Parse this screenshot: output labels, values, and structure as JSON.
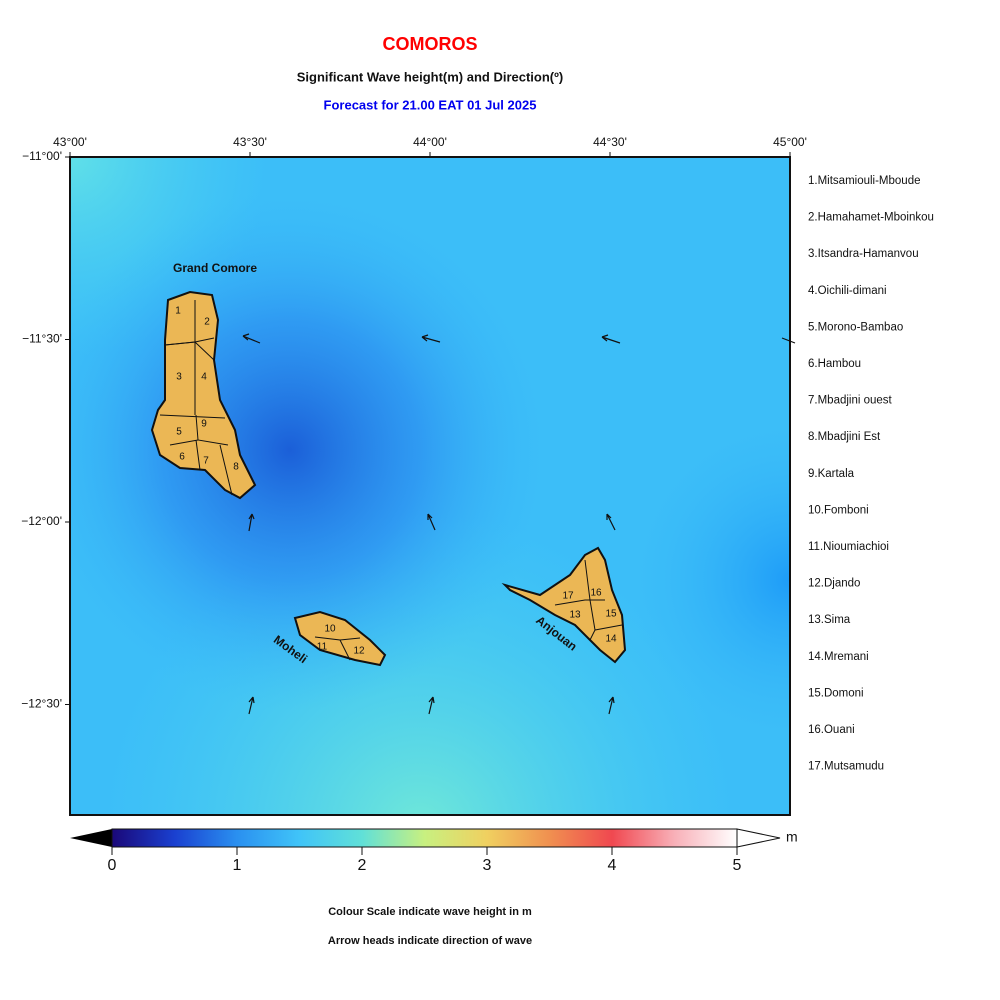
{
  "header": {
    "title": "COMOROS",
    "subtitle": "Significant Wave height(m) and Direction(º)",
    "forecast": "Forecast for  21.00 EAT 01 Jul 2025"
  },
  "map": {
    "lon_labels": [
      "43°00'",
      "43°30'",
      "44°00'",
      "44°30'",
      "45°00'"
    ],
    "lat_labels": [
      "−11°00'",
      "−11°30'",
      "−12°00'",
      "−12°30'"
    ],
    "island_labels": [
      "Grand Comore",
      "Moheli",
      "Anjouan"
    ],
    "region_numbers": [
      "1",
      "2",
      "3",
      "4",
      "5",
      "6",
      "7",
      "8",
      "9",
      "10",
      "11",
      "12",
      "13",
      "14",
      "15",
      "16",
      "17"
    ]
  },
  "legend": {
    "regions": [
      "1.Mitsamiouli-Mboude",
      "2.Hamahamet-Mboinkou",
      "3.Itsandra-Hamanvou",
      "4.Oichili-dimani",
      "5.Morono-Bambao",
      "6.Hambou",
      "7.Mbadjini ouest",
      "8.Mbadjini Est",
      "9.Kartala",
      "10.Fomboni",
      "11.Nioumiachioi",
      "12.Djando",
      "13.Sima",
      "14.Mremani",
      "15.Domoni",
      "16.Ouani",
      "17.Mutsamudu"
    ]
  },
  "colorbar": {
    "range": [
      0,
      5
    ],
    "ticks": [
      0,
      1,
      2,
      3,
      4,
      5
    ],
    "unit": "m"
  },
  "notes": [
    "Colour Scale indicate wave height in m",
    "Arrow heads indicate direction of wave"
  ]
}
